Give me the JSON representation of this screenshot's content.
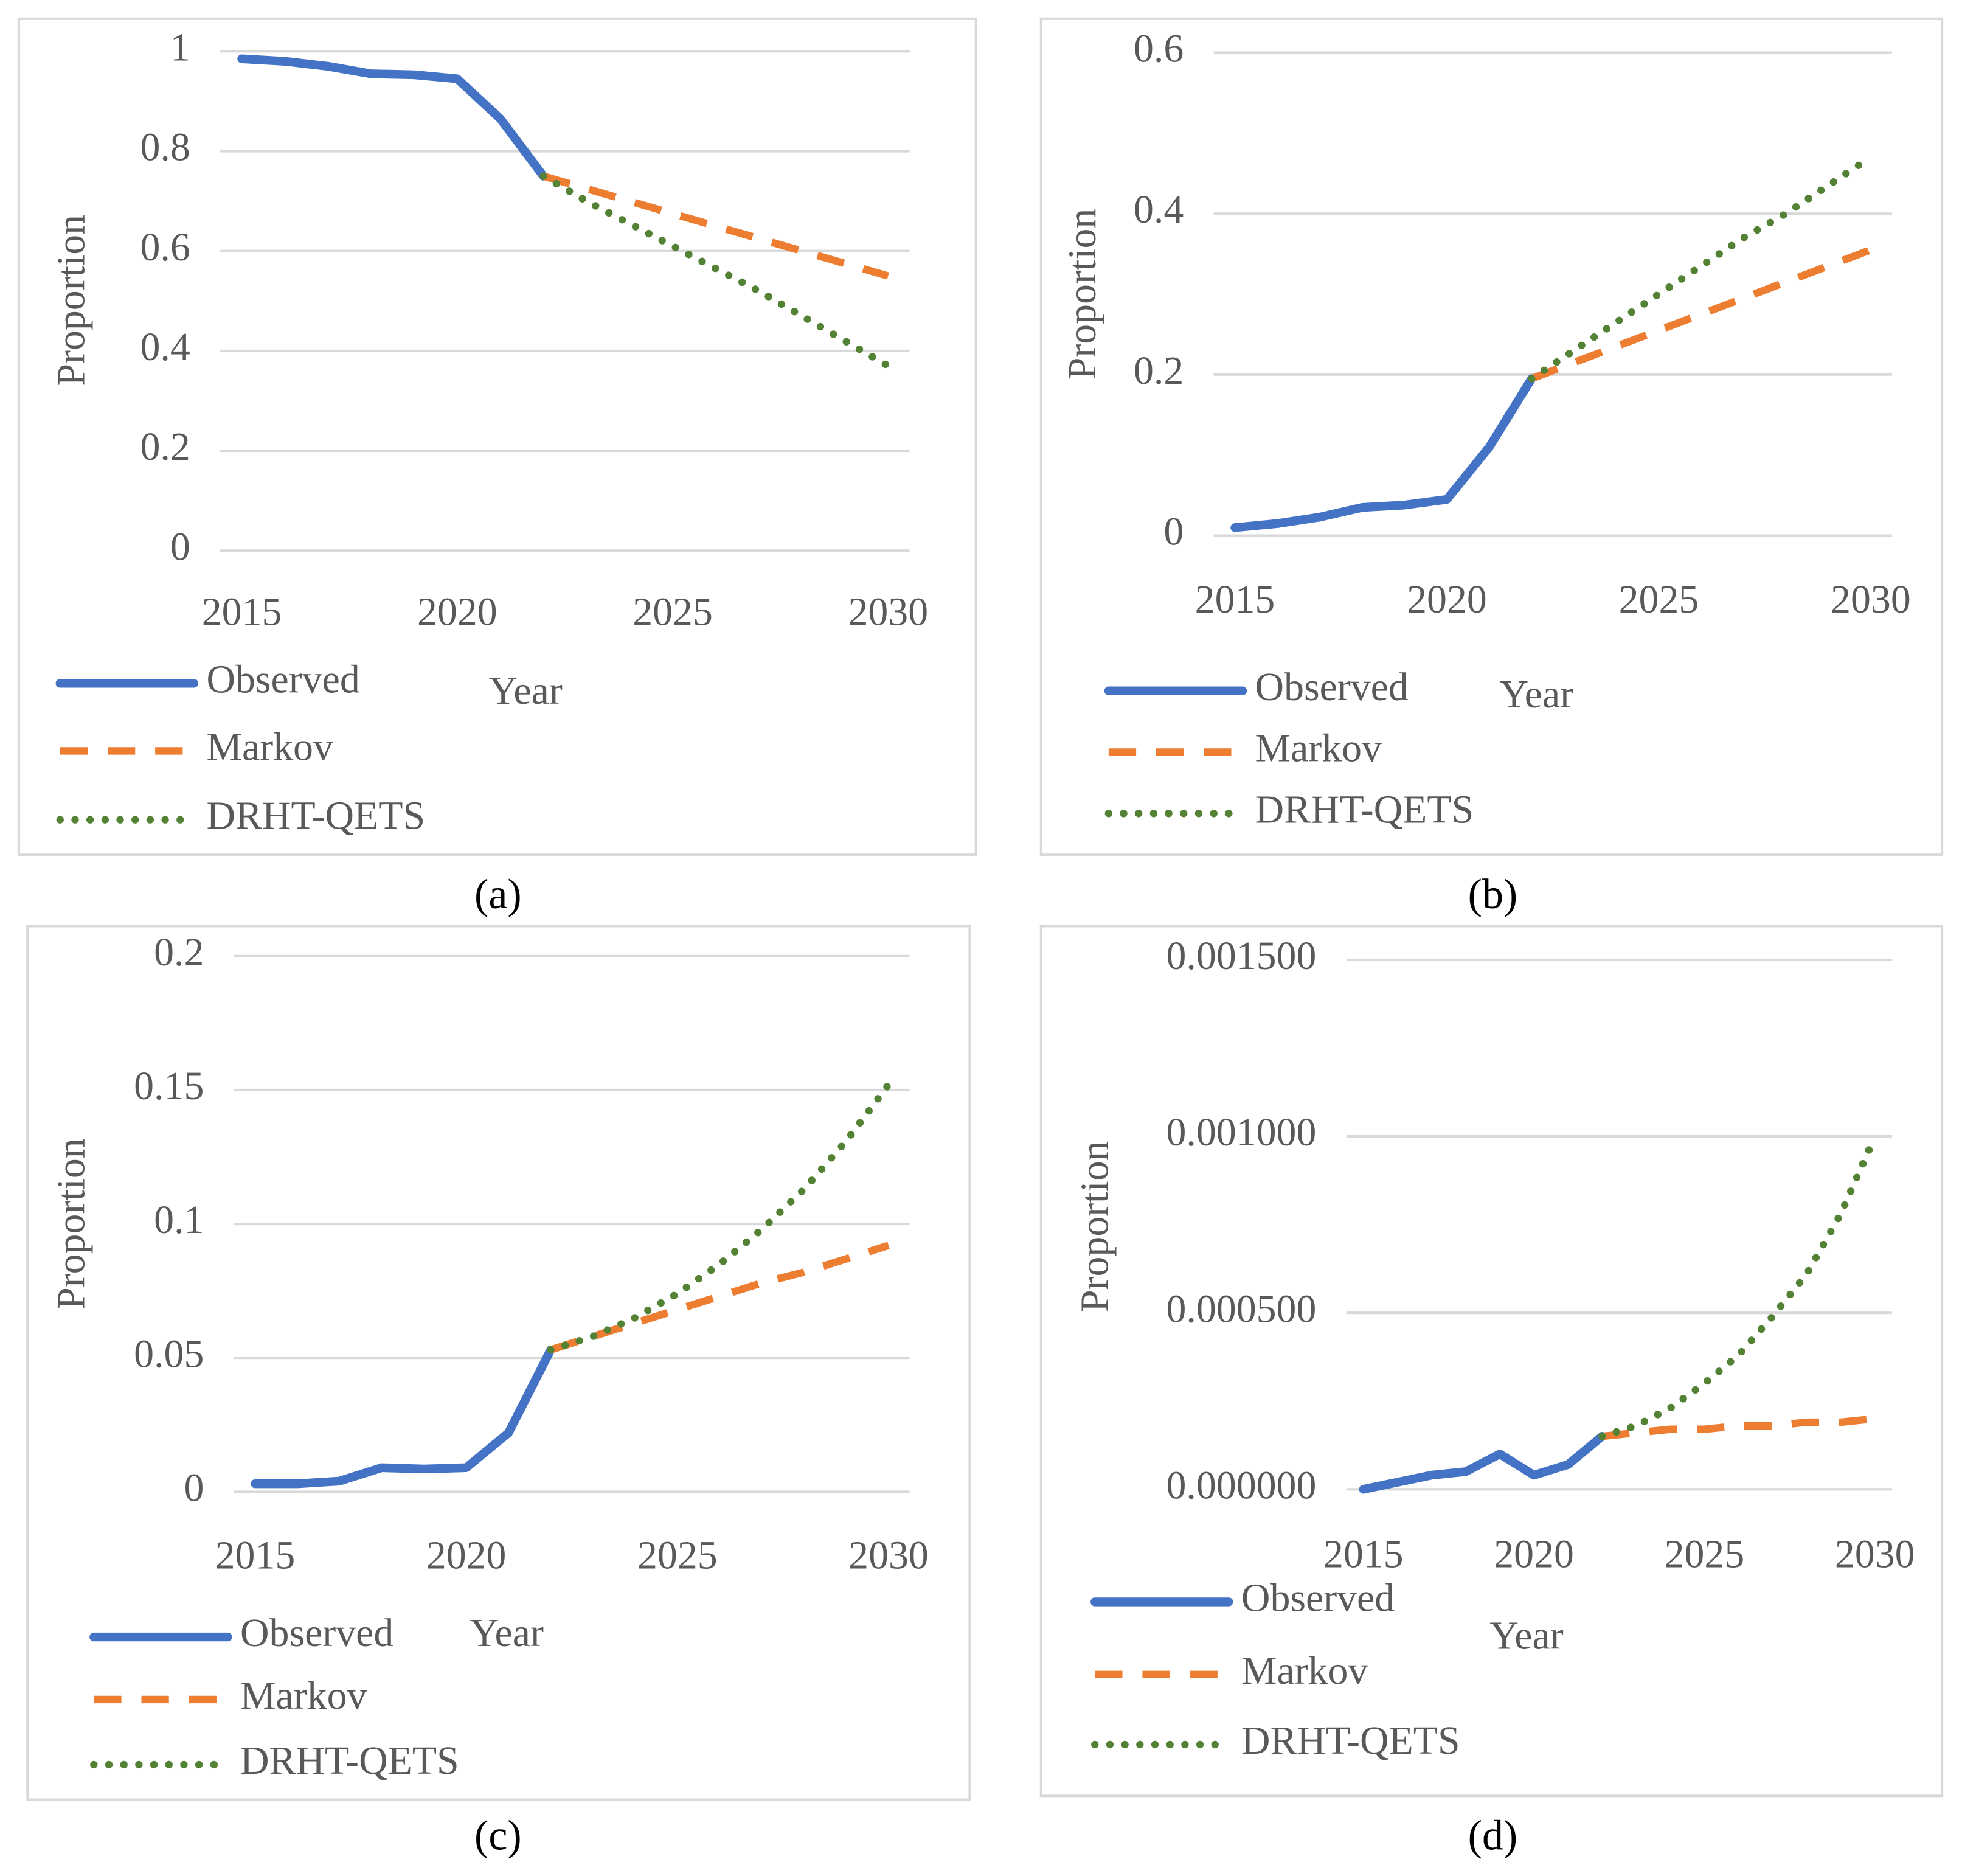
{
  "chart_data": [
    {
      "type": "line",
      "caption": "(a)",
      "y_label": "Proportion",
      "x_label": "Year",
      "grid": true,
      "legend": "bottom-left",
      "x": [
        2015,
        2016,
        2017,
        2018,
        2019,
        2020,
        2021,
        2022,
        2023,
        2024,
        2025,
        2026,
        2027,
        2028,
        2029,
        2030
      ],
      "xlim": [
        2014.5,
        2030.5
      ],
      "xticks": [
        2015,
        2020,
        2025,
        2030
      ],
      "ylim": [
        0,
        1
      ],
      "yticks": [
        0,
        0.2,
        0.4,
        0.6,
        0.8,
        1
      ],
      "series": [
        {
          "name": "Observed",
          "color": "#4472c4",
          "line_style": "solid",
          "values": [
            0.985,
            0.98,
            0.97,
            0.955,
            0.953,
            0.945,
            0.865,
            0.75,
            null,
            null,
            null,
            null,
            null,
            null,
            null,
            null
          ]
        },
        {
          "name": "Markov",
          "color": "#ed7d31",
          "line_style": "dashed",
          "values": [
            null,
            null,
            null,
            null,
            null,
            null,
            null,
            0.75,
            0.725,
            0.7,
            0.675,
            0.65,
            0.625,
            0.6,
            0.575,
            0.55
          ]
        },
        {
          "name": "DRHT-QETS",
          "color": "#548235",
          "line_style": "dotted",
          "values": [
            null,
            null,
            null,
            null,
            null,
            null,
            null,
            0.75,
            0.7,
            0.655,
            0.61,
            0.565,
            0.52,
            0.47,
            0.42,
            0.37
          ]
        }
      ]
    },
    {
      "type": "line",
      "caption": "(b)",
      "y_label": "Proportion",
      "x_label": "Year",
      "grid": true,
      "legend": "bottom-left",
      "x": [
        2015,
        2016,
        2017,
        2018,
        2019,
        2020,
        2021,
        2022,
        2023,
        2024,
        2025,
        2026,
        2027,
        2028,
        2029,
        2030
      ],
      "xlim": [
        2014.5,
        2030.5
      ],
      "xticks": [
        2015,
        2020,
        2025,
        2030
      ],
      "ylim": [
        0,
        0.6
      ],
      "yticks": [
        0,
        0.2,
        0.4,
        0.6
      ],
      "series": [
        {
          "name": "Observed",
          "color": "#4472c4",
          "line_style": "solid",
          "values": [
            0.01,
            0.015,
            0.023,
            0.035,
            0.038,
            0.045,
            0.11,
            0.195,
            null,
            null,
            null,
            null,
            null,
            null,
            null,
            null
          ]
        },
        {
          "name": "Markov",
          "color": "#ed7d31",
          "line_style": "dashed",
          "values": [
            null,
            null,
            null,
            null,
            null,
            null,
            null,
            0.195,
            0.215,
            0.235,
            0.255,
            0.275,
            0.295,
            0.315,
            0.335,
            0.355
          ]
        },
        {
          "name": "DRHT-QETS",
          "color": "#548235",
          "line_style": "dotted",
          "values": [
            null,
            null,
            null,
            null,
            null,
            null,
            null,
            0.195,
            0.23,
            0.265,
            0.3,
            0.335,
            0.37,
            0.4,
            0.435,
            0.47
          ]
        }
      ]
    },
    {
      "type": "line",
      "caption": "(c)",
      "y_label": "Proportion",
      "x_label": "Year",
      "grid": true,
      "legend": "bottom-left",
      "x": [
        2015,
        2016,
        2017,
        2018,
        2019,
        2020,
        2021,
        2022,
        2023,
        2024,
        2025,
        2026,
        2027,
        2028,
        2029,
        2030
      ],
      "xlim": [
        2014.5,
        2030.5
      ],
      "xticks": [
        2015,
        2020,
        2025,
        2030
      ],
      "ylim": [
        0,
        0.2
      ],
      "yticks": [
        0,
        0.05,
        0.1,
        0.15,
        0.2
      ],
      "series": [
        {
          "name": "Observed",
          "color": "#4472c4",
          "line_style": "solid",
          "values": [
            0.003,
            0.003,
            0.004,
            0.009,
            0.0085,
            0.009,
            0.022,
            0.053,
            null,
            null,
            null,
            null,
            null,
            null,
            null,
            null
          ]
        },
        {
          "name": "Markov",
          "color": "#ed7d31",
          "line_style": "dashed",
          "values": [
            null,
            null,
            null,
            null,
            null,
            null,
            null,
            0.053,
            0.058,
            0.063,
            0.068,
            0.073,
            0.078,
            0.082,
            0.087,
            0.092
          ]
        },
        {
          "name": "DRHT-QETS",
          "color": "#548235",
          "line_style": "dotted",
          "values": [
            null,
            null,
            null,
            null,
            null,
            null,
            null,
            0.053,
            0.058,
            0.065,
            0.074,
            0.085,
            0.098,
            0.113,
            0.131,
            0.152
          ]
        }
      ]
    },
    {
      "type": "line",
      "caption": "(d)",
      "y_label": "Proportion",
      "x_label": "Year",
      "grid": true,
      "legend": "bottom-left",
      "x": [
        2015,
        2016,
        2017,
        2018,
        2019,
        2020,
        2021,
        2022,
        2023,
        2024,
        2025,
        2026,
        2027,
        2028,
        2029,
        2030
      ],
      "xlim": [
        2014.5,
        2030.5
      ],
      "xticks": [
        2015,
        2020,
        2025,
        2030
      ],
      "ylim": [
        0,
        0.0015
      ],
      "yticks": [
        {
          "value": 0,
          "label": "0.000000"
        },
        {
          "value": 0.0005,
          "label": "0.000500"
        },
        {
          "value": 0.001,
          "label": "0.001000"
        },
        {
          "value": 0.0015,
          "label": "0.001500"
        }
      ],
      "series": [
        {
          "name": "Observed",
          "color": "#4472c4",
          "line_style": "solid",
          "values": [
            0,
            2e-05,
            4e-05,
            5e-05,
            0.0001,
            4e-05,
            7e-05,
            0.00015,
            null,
            null,
            null,
            null,
            null,
            null,
            null,
            null
          ]
        },
        {
          "name": "Markov",
          "color": "#ed7d31",
          "line_style": "dashed",
          "values": [
            null,
            null,
            null,
            null,
            null,
            null,
            null,
            0.00015,
            0.00016,
            0.00017,
            0.00017,
            0.00018,
            0.00018,
            0.00019,
            0.00019,
            0.0002
          ]
        },
        {
          "name": "DRHT-QETS",
          "color": "#548235",
          "line_style": "dotted",
          "values": [
            null,
            null,
            null,
            null,
            null,
            null,
            null,
            0.00015,
            0.00018,
            0.00023,
            0.0003,
            0.00038,
            0.00049,
            0.00061,
            0.00078,
            0.001
          ]
        }
      ]
    }
  ]
}
